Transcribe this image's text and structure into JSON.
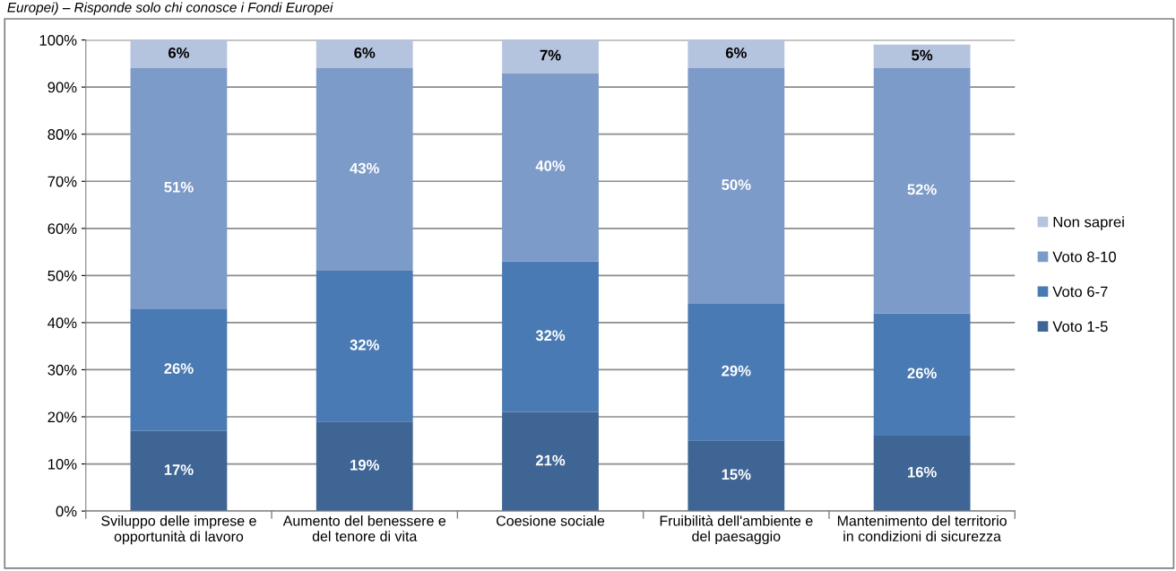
{
  "chart_data": {
    "type": "bar",
    "stacked": true,
    "annotations": [
      "Europei) – Risponde solo chi conosce i Fondi Europei"
    ],
    "categories": [
      "Sviluppo delle imprese e\nopportunità di lavoro",
      "Aumento del benessere e\ndel tenore di vita",
      "Coesione sociale",
      "Fruibilità dell'ambiente e\ndel paesaggio",
      "Mantenimento del territorio\nin condizioni di sicurezza"
    ],
    "series": [
      {
        "name": "Voto 1-5",
        "color": "#3e6594",
        "values": [
          17,
          19,
          21,
          15,
          16
        ],
        "value_labels": [
          "17%",
          "19%",
          "21%",
          "15%",
          "16%"
        ]
      },
      {
        "name": "Voto 6-7",
        "color": "#4a7ab3",
        "values": [
          26,
          32,
          32,
          29,
          26
        ],
        "value_labels": [
          "26%",
          "32%",
          "32%",
          "29%",
          "26%"
        ]
      },
      {
        "name": "Voto 8-10",
        "color": "#7d9bc8",
        "values": [
          51,
          43,
          40,
          50,
          52
        ],
        "value_labels": [
          "51%",
          "43%",
          "40%",
          "50%",
          "52%"
        ]
      },
      {
        "name": "Non saprei",
        "color": "#b4c3de",
        "values": [
          6,
          6,
          7,
          6,
          5
        ],
        "value_labels": [
          "6%",
          "6%",
          "7%",
          "6%",
          "5%"
        ]
      }
    ],
    "ylim": [
      0,
      100
    ],
    "yticks": [
      {
        "value": 0,
        "label": "0%"
      },
      {
        "value": 10,
        "label": "10%"
      },
      {
        "value": 20,
        "label": "20%"
      },
      {
        "value": 30,
        "label": "30%"
      },
      {
        "value": 40,
        "label": "40%"
      },
      {
        "value": 50,
        "label": "50%"
      },
      {
        "value": 60,
        "label": "60%"
      },
      {
        "value": 70,
        "label": "70%"
      },
      {
        "value": 80,
        "label": "80%"
      },
      {
        "value": 90,
        "label": "90%"
      },
      {
        "value": 100,
        "label": "100%"
      }
    ],
    "grid": "y",
    "legend": "right"
  }
}
